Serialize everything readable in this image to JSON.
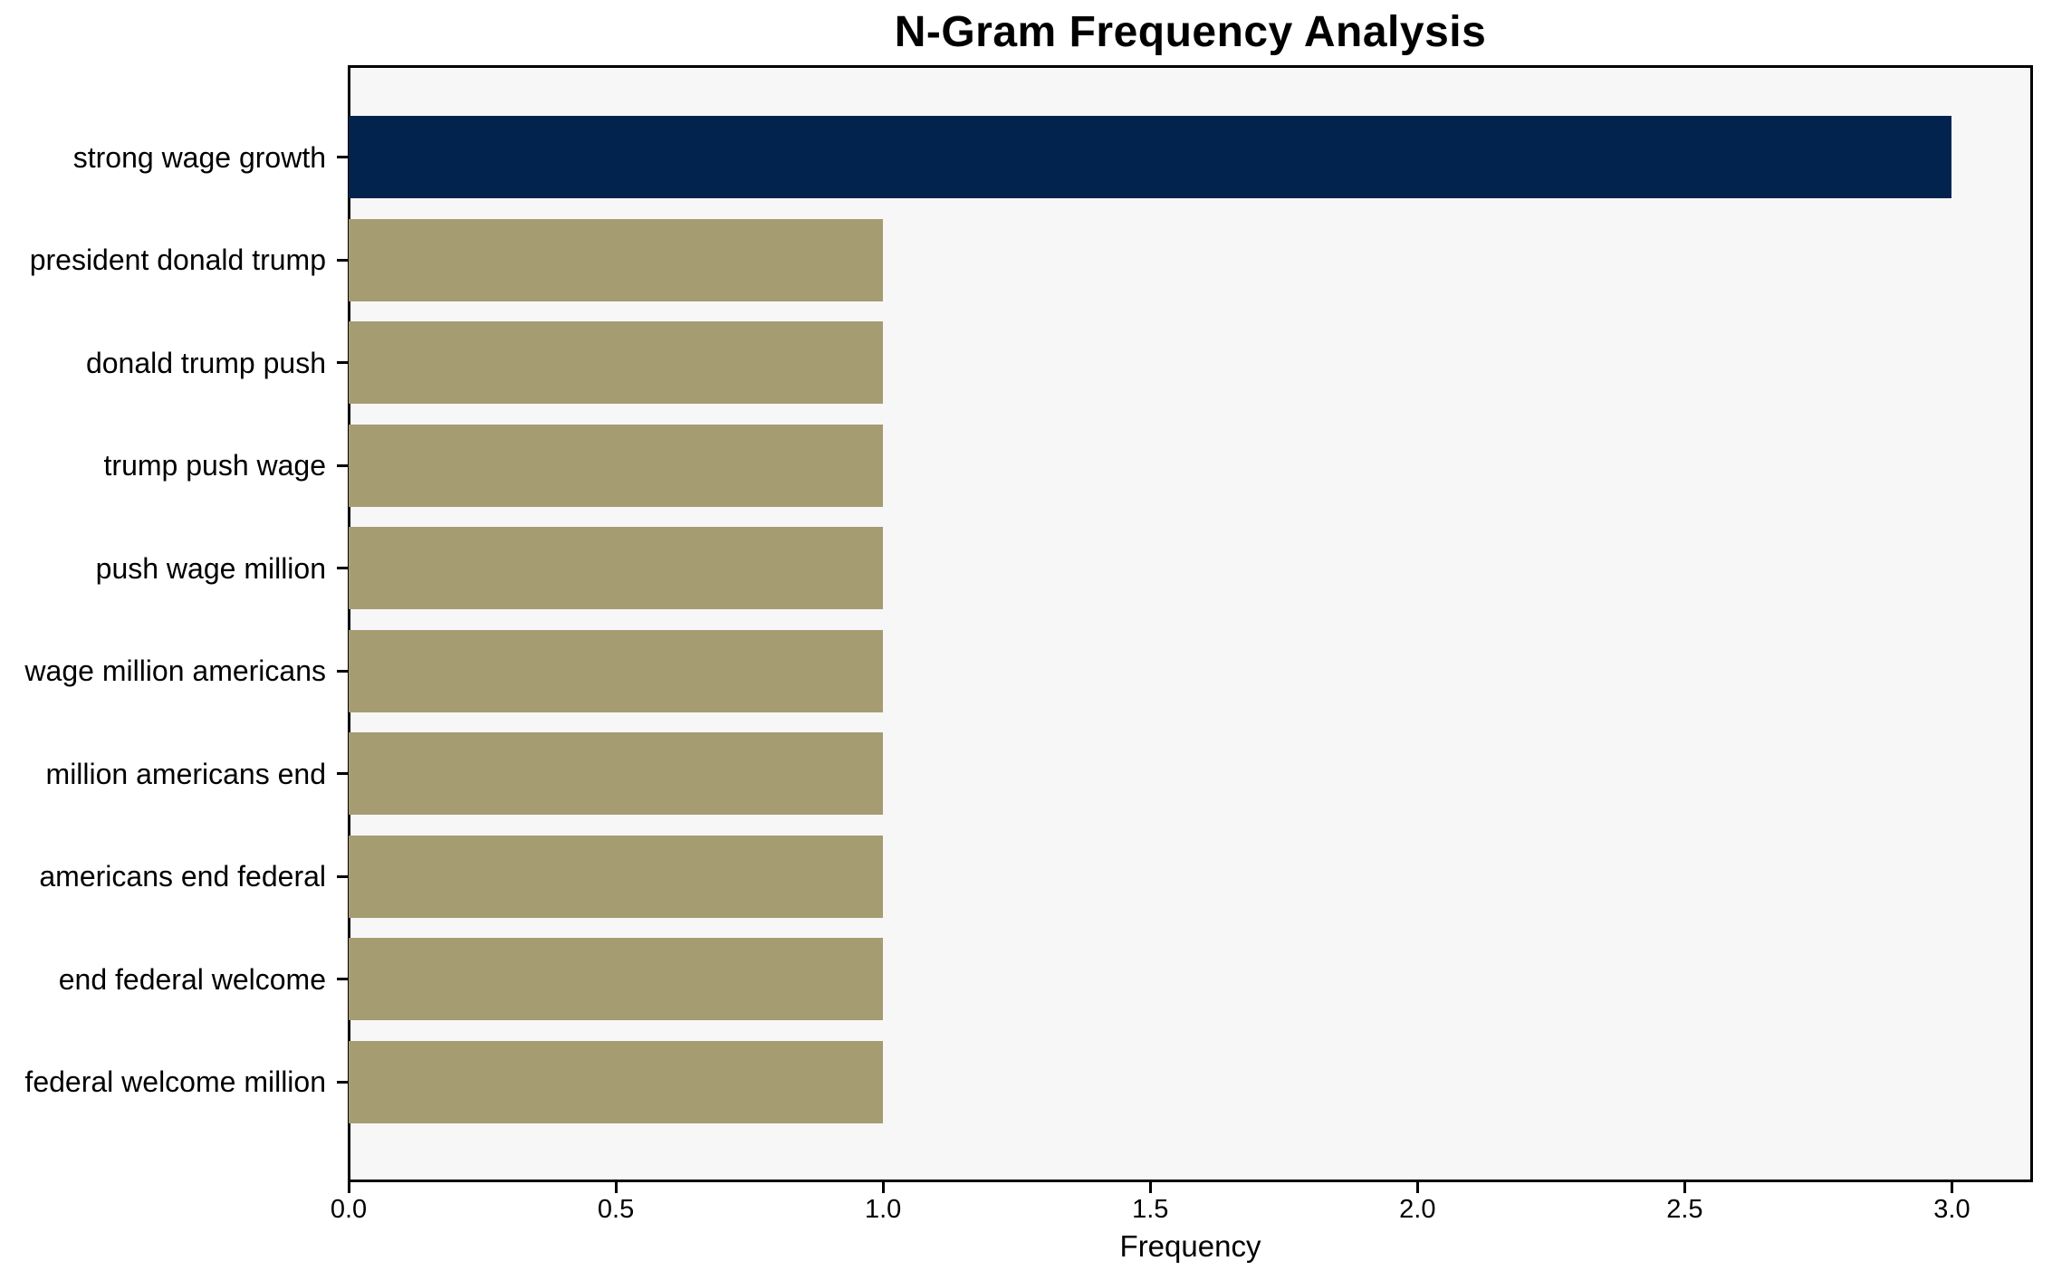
{
  "title": "N-Gram Frequency Analysis",
  "colors": {
    "highlight_bar": "#02234E",
    "default_bar": "#A69C72",
    "plot_background": "#F7F7F7",
    "figure_background": "#FFFFFF",
    "spine": "#000000",
    "text": "#000000"
  },
  "chart_data": {
    "type": "bar",
    "orientation": "horizontal",
    "title": "N-Gram Frequency Analysis",
    "xlabel": "Frequency",
    "ylabel": "",
    "categories": [
      "strong wage growth",
      "president donald trump",
      "donald trump push",
      "trump push wage",
      "push wage million",
      "wage million americans",
      "million americans end",
      "americans end federal",
      "end federal welcome",
      "federal welcome million"
    ],
    "values": [
      3,
      1,
      1,
      1,
      1,
      1,
      1,
      1,
      1,
      1
    ],
    "bar_colors": [
      "#02234E",
      "#A69C72",
      "#A69C72",
      "#A69C72",
      "#A69C72",
      "#A69C72",
      "#A69C72",
      "#A69C72",
      "#A69C72",
      "#A69C72"
    ],
    "xlim": [
      0,
      3.15
    ],
    "xticks": [
      0.0,
      0.5,
      1.0,
      1.5,
      2.0,
      2.5,
      3.0
    ],
    "xtick_labels": [
      "0.0",
      "0.5",
      "1.0",
      "1.5",
      "2.0",
      "2.5",
      "3.0"
    ],
    "grid": false,
    "legend": null
  }
}
